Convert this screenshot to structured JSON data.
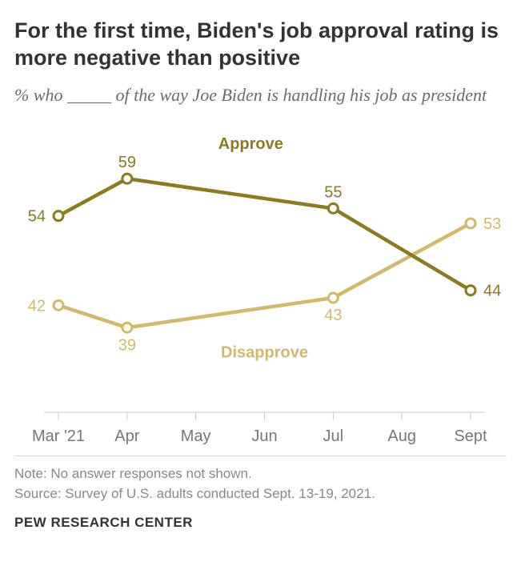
{
  "title": "For the first time, Biden's job approval rating is more negative than positive",
  "subtitle": "% who _____ of the way Joe Biden is handling his job as president",
  "chart": {
    "type": "line",
    "background_color": "#ffffff",
    "axis_color": "#c9c9c9",
    "tick_length": 10,
    "xlabels": [
      "Mar '21",
      "Apr",
      "May",
      "Jun",
      "Jul",
      "Aug",
      "Sept"
    ],
    "y_min": 30,
    "y_max": 66,
    "line_width": 4.5,
    "marker_radius": 6,
    "marker_stroke_width": 3,
    "marker_fill": "#ffffff",
    "series": {
      "approve": {
        "label": "Approve",
        "color": "#8b7a1e",
        "label_x_index": 2.8,
        "label_y": 63,
        "points": [
          {
            "x_index": 0,
            "value": 54,
            "label": "54",
            "label_pos": "left"
          },
          {
            "x_index": 1,
            "value": 59,
            "label": "59",
            "label_pos": "above"
          },
          {
            "x_index": 4,
            "value": 55,
            "label": "55",
            "label_pos": "above"
          },
          {
            "x_index": 6,
            "value": 44,
            "label": "44",
            "label_pos": "right"
          }
        ]
      },
      "disapprove": {
        "label": "Disapprove",
        "color": "#d1b96a",
        "label_x_index": 3.0,
        "label_y": 35,
        "points": [
          {
            "x_index": 0,
            "value": 42,
            "label": "42",
            "label_pos": "left"
          },
          {
            "x_index": 1,
            "value": 39,
            "label": "39",
            "label_pos": "below"
          },
          {
            "x_index": 4,
            "value": 43,
            "label": "43",
            "label_pos": "below"
          },
          {
            "x_index": 6,
            "value": 53,
            "label": "53",
            "label_pos": "right"
          }
        ]
      }
    },
    "label_fontsize": 20,
    "tick_fontsize": 20,
    "tick_color": "#777777",
    "value_fontsize": 20
  },
  "note": "Note: No answer responses not shown.",
  "source": "Source: Survey of U.S. adults conducted Sept. 13-19, 2021.",
  "footer": "PEW RESEARCH CENTER"
}
